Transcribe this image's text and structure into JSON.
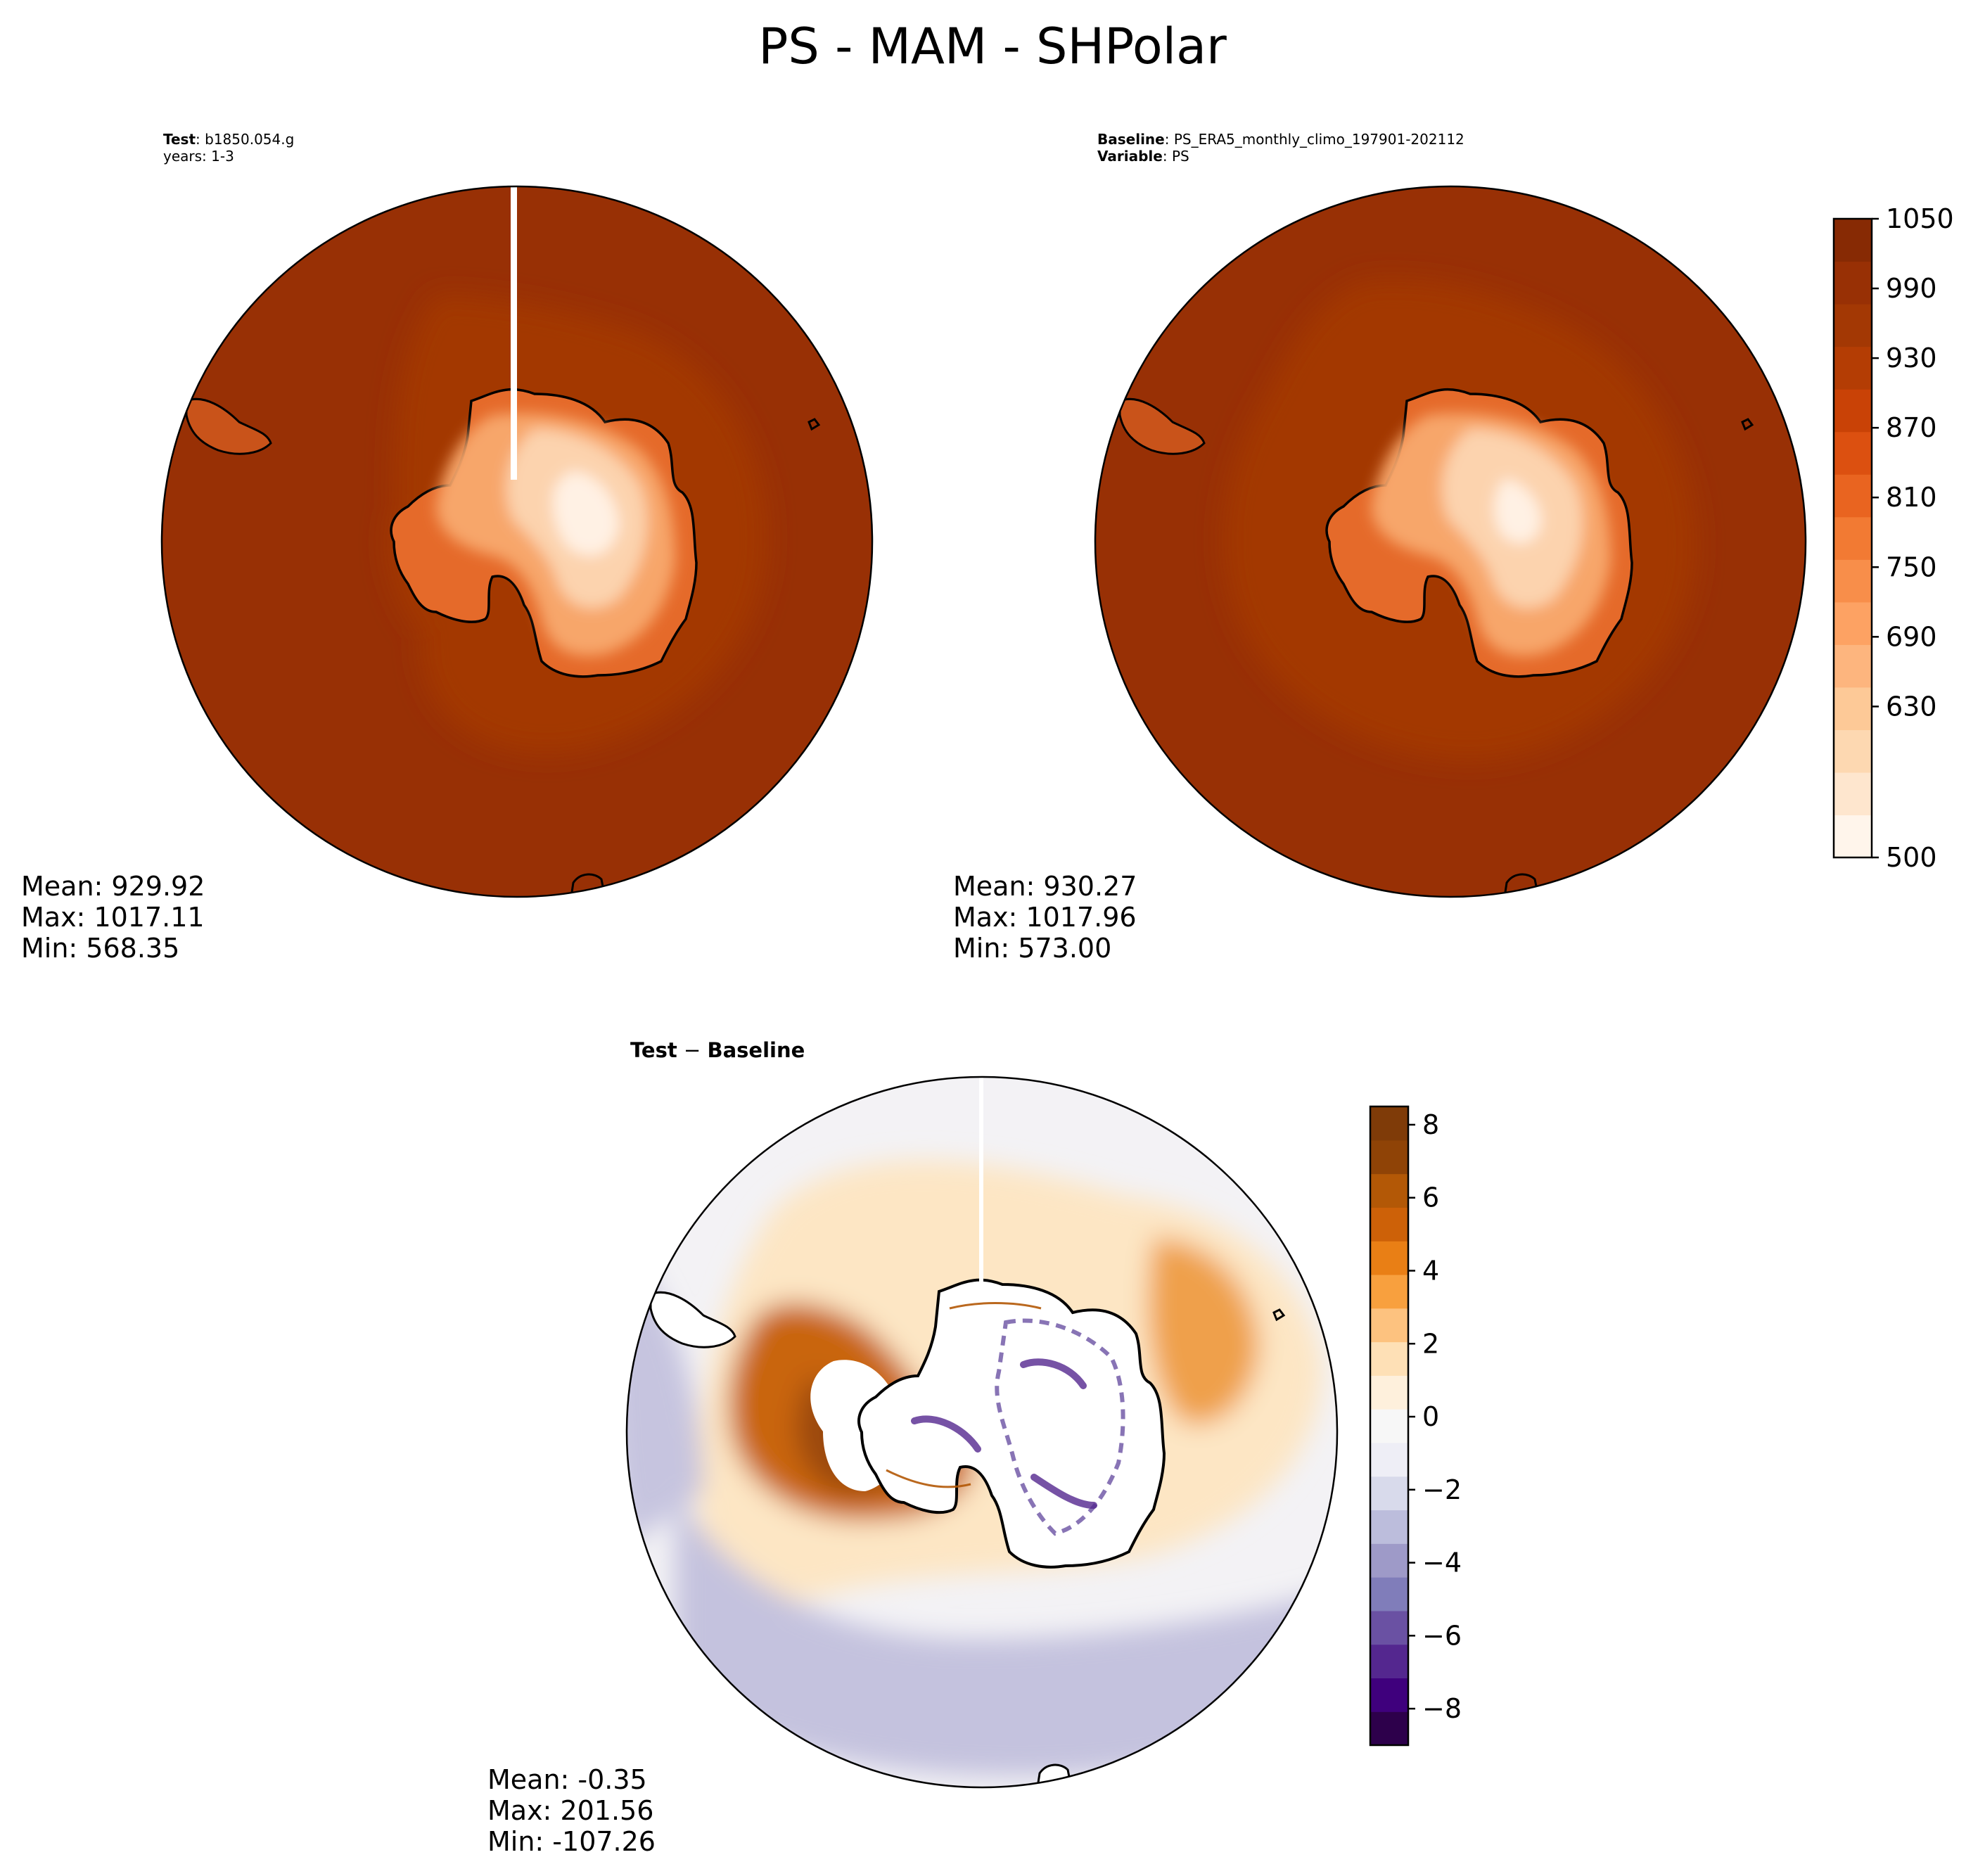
{
  "figure": {
    "title": "PS - MAM - SHPolar"
  },
  "panels": {
    "test": {
      "label_key": "Test",
      "label_value": "b1850.054.g",
      "line2": "years: 1-3",
      "stats": {
        "mean": "Mean: 929.92",
        "max": "Max: 1017.11",
        "min": "Min: 568.35"
      }
    },
    "baseline": {
      "label_key": "Baseline",
      "label_value": "PS_ERA5_monthly_climo_197901-202112",
      "line2_key": "Variable",
      "line2_value": "PS",
      "stats": {
        "mean": "Mean: 930.27",
        "max": "Max: 1017.96",
        "min": "Min: 573.00"
      }
    },
    "diff": {
      "title_a": "Test",
      "title_op": "−",
      "title_b": "Baseline",
      "stats": {
        "mean": "Mean: -0.35",
        "max": "Max: 201.56",
        "min": "Min: -107.26"
      }
    }
  },
  "colors": {
    "ocean_dark": "#983005",
    "ocean_mid": "#a33804",
    "land_light": "#fde5cf",
    "coast": "#000000",
    "diff_purple": "#3f007d",
    "diff_white": "#f7f7f7",
    "diff_brown": "#7f3b08"
  },
  "chart_data": [
    {
      "type": "heatmap",
      "projection": "south-polar-stereographic",
      "panel": "test",
      "variable": "PS",
      "stats": {
        "mean": 929.92,
        "max": 1017.11,
        "min": 568.35
      }
    },
    {
      "type": "heatmap",
      "projection": "south-polar-stereographic",
      "panel": "baseline",
      "variable": "PS",
      "stats": {
        "mean": 930.27,
        "max": 1017.96,
        "min": 573.0
      },
      "colorbar": {
        "range": [
          500,
          1050
        ],
        "ticks": [
          1050,
          990,
          930,
          870,
          810,
          750,
          690,
          630,
          500
        ],
        "tick_labels": [
          "1050",
          "990",
          "930",
          "870",
          "810",
          "750",
          "690",
          "630",
          "500"
        ],
        "colors": [
          "#fff5eb",
          "#fee6ce",
          "#fdd8b1",
          "#fdc997",
          "#fdb57e",
          "#fda263",
          "#f88e4a",
          "#f27a33",
          "#e96420",
          "#dc5010",
          "#c94206",
          "#b43d04",
          "#a33804",
          "#983005",
          "#872a04"
        ]
      }
    },
    {
      "type": "heatmap",
      "projection": "south-polar-stereographic",
      "panel": "test-minus-baseline",
      "stats": {
        "mean": -0.35,
        "max": 201.56,
        "min": -107.26
      },
      "colorbar": {
        "range": [
          -9,
          8.5
        ],
        "ticks": [
          8,
          6,
          4,
          2,
          0,
          -2,
          -4,
          -6,
          -8
        ],
        "tick_labels": [
          "8",
          "6",
          "4",
          "2",
          "0",
          "−2",
          "−4",
          "−6",
          "−8"
        ],
        "colors": [
          "#2d004b",
          "#3f007d",
          "#54278f",
          "#6a51a3",
          "#807dba",
          "#9e9ac8",
          "#bcbddc",
          "#d8daeb",
          "#eeeef6",
          "#f7f7f7",
          "#fef0dc",
          "#fee0b6",
          "#fdc27f",
          "#f8a03e",
          "#e97f15",
          "#cd6108",
          "#b35806",
          "#8f4306",
          "#7f3b08"
        ]
      }
    }
  ]
}
